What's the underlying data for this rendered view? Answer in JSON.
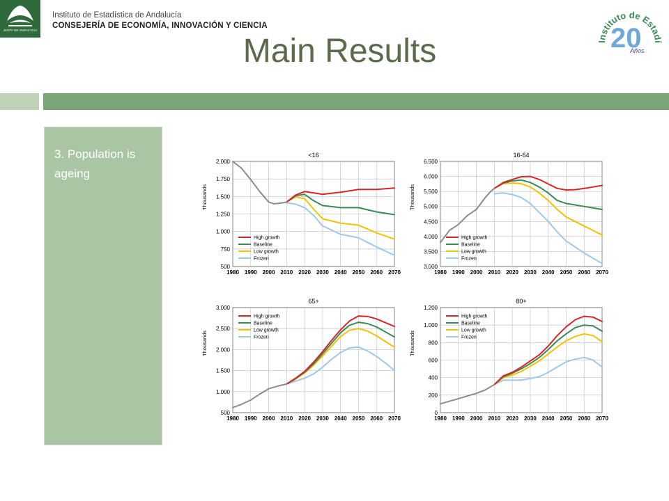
{
  "header": {
    "institute": "Instituto de Estadística de Andalucía",
    "ministry": "CONSEJERÍA DE ECONOMÍA, INNOVACIÓN Y CIENCIA",
    "left_logo_text": "JUNTA DE ANDALUCIA",
    "right_logo_text": "Instituto de Estadística de Andalucía",
    "right_logo_number": "20",
    "right_logo_sub": "Años"
  },
  "title": "Main Results",
  "sidebar": {
    "text": "3. Population is ageing"
  },
  "colors": {
    "high": "#d62728",
    "baseline": "#3a8a57",
    "low": "#f2c200",
    "frozen": "#9ec8ea",
    "historical": "#8a8a8a",
    "band": "#7aa677",
    "panel": "#a9c5a4"
  },
  "chart_data": [
    {
      "type": "line",
      "title": "<16",
      "ylabel": "Thousands",
      "ylim": [
        500,
        2000
      ],
      "yticks": [
        500,
        750,
        1000,
        1250,
        1500,
        1750,
        2000
      ],
      "ytick_labels": [
        "500",
        "750",
        "1.000",
        "1.250",
        "1.500",
        "1.750",
        "2.000"
      ],
      "xlim": [
        1980,
        2070
      ],
      "xticks": [
        1980,
        1990,
        2000,
        2010,
        2020,
        2030,
        2040,
        2050,
        2060,
        2070
      ],
      "legend": "bottom-left",
      "historical": {
        "x": [
          1980,
          1985,
          1990,
          1995,
          2000,
          2003,
          2005,
          2008,
          2010
        ],
        "y": [
          2000,
          1900,
          1740,
          1570,
          1420,
          1395,
          1400,
          1410,
          1420
        ]
      },
      "series": [
        {
          "name": "High growth",
          "color": "high",
          "x": [
            2010,
            2015,
            2020,
            2025,
            2030,
            2040,
            2050,
            2060,
            2070
          ],
          "y": [
            1420,
            1520,
            1570,
            1550,
            1530,
            1560,
            1600,
            1600,
            1620
          ]
        },
        {
          "name": "Baseline",
          "color": "baseline",
          "x": [
            2010,
            2015,
            2020,
            2025,
            2030,
            2040,
            2050,
            2060,
            2070
          ],
          "y": [
            1420,
            1510,
            1530,
            1440,
            1370,
            1340,
            1340,
            1280,
            1240
          ]
        },
        {
          "name": "Low growth",
          "color": "low",
          "x": [
            2010,
            2015,
            2020,
            2025,
            2030,
            2040,
            2050,
            2060,
            2070
          ],
          "y": [
            1420,
            1490,
            1470,
            1320,
            1180,
            1120,
            1090,
            980,
            890
          ]
        },
        {
          "name": "Frozen",
          "color": "frozen",
          "x": [
            2010,
            2015,
            2020,
            2025,
            2030,
            2040,
            2050,
            2060,
            2070
          ],
          "y": [
            1410,
            1390,
            1340,
            1230,
            1080,
            960,
            910,
            780,
            660
          ]
        }
      ]
    },
    {
      "type": "line",
      "title": "16-64",
      "ylabel": "Thousands",
      "ylim": [
        3000,
        6500
      ],
      "yticks": [
        3000,
        3500,
        4000,
        4500,
        5000,
        5500,
        6000,
        6500
      ],
      "ytick_labels": [
        "3.000",
        "3.500",
        "4.000",
        "4.500",
        "5.000",
        "5.500",
        "6.000",
        "6.500"
      ],
      "xlim": [
        1980,
        2070
      ],
      "xticks": [
        1980,
        1990,
        2000,
        2010,
        2020,
        2030,
        2040,
        2050,
        2060,
        2070
      ],
      "legend": "bottom-left",
      "historical": {
        "x": [
          1980,
          1985,
          1990,
          1995,
          2000,
          2005,
          2008,
          2010
        ],
        "y": [
          3800,
          4200,
          4400,
          4700,
          4900,
          5300,
          5500,
          5600
        ]
      },
      "series": [
        {
          "name": "High growth",
          "color": "high",
          "x": [
            2010,
            2015,
            2020,
            2025,
            2030,
            2035,
            2040,
            2045,
            2050,
            2055,
            2060,
            2070
          ],
          "y": [
            5600,
            5800,
            5900,
            5990,
            6000,
            5900,
            5750,
            5600,
            5550,
            5560,
            5600,
            5700
          ]
        },
        {
          "name": "Baseline",
          "color": "baseline",
          "x": [
            2010,
            2015,
            2020,
            2025,
            2030,
            2035,
            2040,
            2045,
            2050,
            2060,
            2070
          ],
          "y": [
            5600,
            5780,
            5850,
            5880,
            5800,
            5650,
            5450,
            5200,
            5100,
            5000,
            4900
          ]
        },
        {
          "name": "Low growth",
          "color": "low",
          "x": [
            2010,
            2015,
            2020,
            2025,
            2030,
            2035,
            2040,
            2045,
            2050,
            2060,
            2070
          ],
          "y": [
            5600,
            5760,
            5780,
            5760,
            5650,
            5450,
            5200,
            4900,
            4650,
            4350,
            4050
          ]
        },
        {
          "name": "Frozen",
          "color": "frozen",
          "x": [
            2010,
            2015,
            2020,
            2025,
            2030,
            2035,
            2040,
            2045,
            2050,
            2060,
            2070
          ],
          "y": [
            5420,
            5450,
            5400,
            5300,
            5100,
            4800,
            4500,
            4150,
            3850,
            3450,
            3100
          ]
        }
      ]
    },
    {
      "type": "line",
      "title": "65+",
      "ylabel": "Thousands",
      "ylim": [
        500,
        3000
      ],
      "yticks": [
        500,
        1000,
        1500,
        2000,
        2500,
        3000
      ],
      "ytick_labels": [
        "500",
        "1.000",
        "1.500",
        "2.000",
        "2.500",
        "3.000"
      ],
      "xlim": [
        1980,
        2070
      ],
      "xticks": [
        1980,
        1990,
        2000,
        2010,
        2020,
        2030,
        2040,
        2050,
        2060,
        2070
      ],
      "legend": "top-left",
      "historical": {
        "x": [
          1980,
          1985,
          1990,
          1995,
          2000,
          2005,
          2010
        ],
        "y": [
          620,
          700,
          800,
          940,
          1070,
          1130,
          1180
        ]
      },
      "series": [
        {
          "name": "High growth",
          "color": "high",
          "x": [
            2010,
            2015,
            2020,
            2025,
            2030,
            2035,
            2040,
            2045,
            2050,
            2055,
            2060,
            2065,
            2070
          ],
          "y": [
            1180,
            1320,
            1480,
            1700,
            1950,
            2220,
            2470,
            2680,
            2800,
            2790,
            2730,
            2640,
            2550
          ]
        },
        {
          "name": "Baseline",
          "color": "baseline",
          "x": [
            2010,
            2015,
            2020,
            2025,
            2030,
            2035,
            2040,
            2045,
            2050,
            2055,
            2060,
            2065,
            2070
          ],
          "y": [
            1180,
            1310,
            1460,
            1660,
            1900,
            2150,
            2400,
            2580,
            2650,
            2620,
            2540,
            2420,
            2300
          ]
        },
        {
          "name": "Low growth",
          "color": "low",
          "x": [
            2010,
            2015,
            2020,
            2025,
            2030,
            2035,
            2040,
            2045,
            2050,
            2055,
            2060,
            2065,
            2070
          ],
          "y": [
            1180,
            1300,
            1440,
            1630,
            1850,
            2080,
            2310,
            2460,
            2500,
            2440,
            2330,
            2190,
            2060
          ]
        },
        {
          "name": "Frozen",
          "color": "frozen",
          "x": [
            2010,
            2015,
            2020,
            2025,
            2030,
            2035,
            2040,
            2045,
            2050,
            2055,
            2060,
            2065,
            2070
          ],
          "y": [
            1180,
            1250,
            1320,
            1420,
            1580,
            1770,
            1930,
            2040,
            2060,
            1970,
            1840,
            1680,
            1500
          ]
        }
      ]
    },
    {
      "type": "line",
      "title": "80+",
      "ylabel": "Thousands",
      "ylim": [
        0,
        1200
      ],
      "yticks": [
        0,
        200,
        400,
        600,
        800,
        1000,
        1200
      ],
      "ytick_labels": [
        "0",
        "200",
        "400",
        "600",
        "800",
        "1.000",
        "1.200"
      ],
      "xlim": [
        1980,
        2070
      ],
      "xticks": [
        1980,
        1990,
        2000,
        2010,
        2020,
        2030,
        2040,
        2050,
        2060,
        2070
      ],
      "legend": "top-left",
      "historical": {
        "x": [
          1980,
          1985,
          1990,
          1995,
          2000,
          2005,
          2010
        ],
        "y": [
          100,
          130,
          160,
          190,
          220,
          260,
          320
        ]
      },
      "series": [
        {
          "name": "High growth",
          "color": "high",
          "x": [
            2010,
            2015,
            2020,
            2025,
            2030,
            2035,
            2040,
            2045,
            2050,
            2055,
            2060,
            2065,
            2070
          ],
          "y": [
            320,
            420,
            460,
            520,
            590,
            660,
            760,
            880,
            980,
            1060,
            1100,
            1090,
            1040
          ]
        },
        {
          "name": "Baseline",
          "color": "baseline",
          "x": [
            2010,
            2015,
            2020,
            2025,
            2030,
            2035,
            2040,
            2045,
            2050,
            2055,
            2060,
            2065,
            2070
          ],
          "y": [
            320,
            410,
            450,
            500,
            560,
            630,
            720,
            820,
            900,
            970,
            1000,
            990,
            930
          ]
        },
        {
          "name": "Low growth",
          "color": "low",
          "x": [
            2010,
            2015,
            2020,
            2025,
            2030,
            2035,
            2040,
            2045,
            2050,
            2055,
            2060,
            2065,
            2070
          ],
          "y": [
            320,
            400,
            430,
            470,
            530,
            590,
            670,
            750,
            820,
            870,
            900,
            880,
            810
          ]
        },
        {
          "name": "Frozen",
          "color": "frozen",
          "x": [
            2010,
            2015,
            2020,
            2025,
            2030,
            2035,
            2040,
            2045,
            2050,
            2055,
            2060,
            2065,
            2070
          ],
          "y": [
            320,
            370,
            370,
            370,
            390,
            410,
            460,
            520,
            580,
            610,
            630,
            600,
            520
          ]
        }
      ]
    }
  ]
}
